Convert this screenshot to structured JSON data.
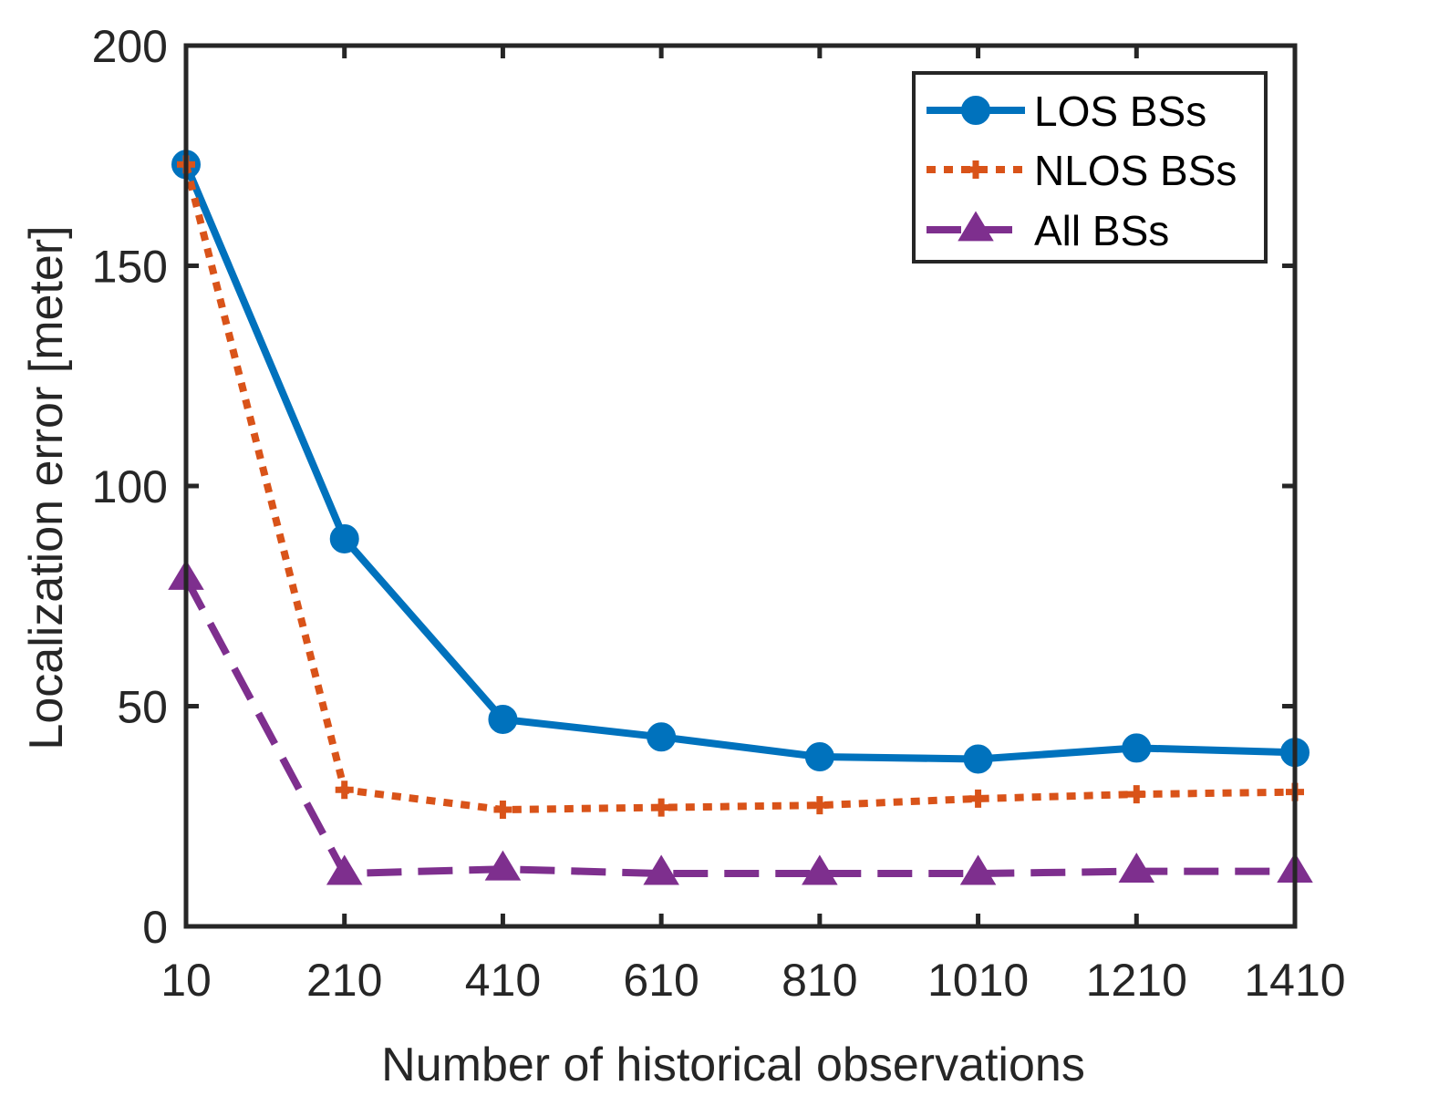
{
  "chart_data": {
    "type": "line",
    "title": "",
    "xlabel": "Number of historical observations",
    "ylabel": "Localization error [meter]",
    "x": [
      10,
      210,
      410,
      610,
      810,
      1010,
      1210,
      1410
    ],
    "x_tick_labels": [
      "10",
      "210",
      "410",
      "610",
      "810",
      "1010",
      "1210",
      "1410"
    ],
    "xlim": [
      10,
      1410
    ],
    "ylim": [
      0,
      200
    ],
    "y_ticks": [
      0,
      50,
      100,
      150,
      200
    ],
    "y_tick_labels": [
      "0",
      "50",
      "100",
      "150",
      "200"
    ],
    "grid": false,
    "legend_position": "top-right",
    "series": [
      {
        "name": "LOS BSs",
        "color": "#0072BD",
        "line_style": "solid",
        "marker": "circle",
        "values": [
          173,
          88,
          47,
          43,
          38.5,
          38,
          40.5,
          39.5
        ]
      },
      {
        "name": "NLOS BSs",
        "color": "#D95319",
        "line_style": "dotted",
        "marker": "plus",
        "values": [
          173,
          31,
          26.5,
          27,
          27.5,
          29,
          30,
          30.5
        ]
      },
      {
        "name": "All BSs",
        "color": "#7E2F8E",
        "line_style": "dashed",
        "marker": "triangle",
        "values": [
          79,
          12,
          13,
          12,
          12,
          12,
          12.5,
          12.5
        ]
      }
    ]
  }
}
